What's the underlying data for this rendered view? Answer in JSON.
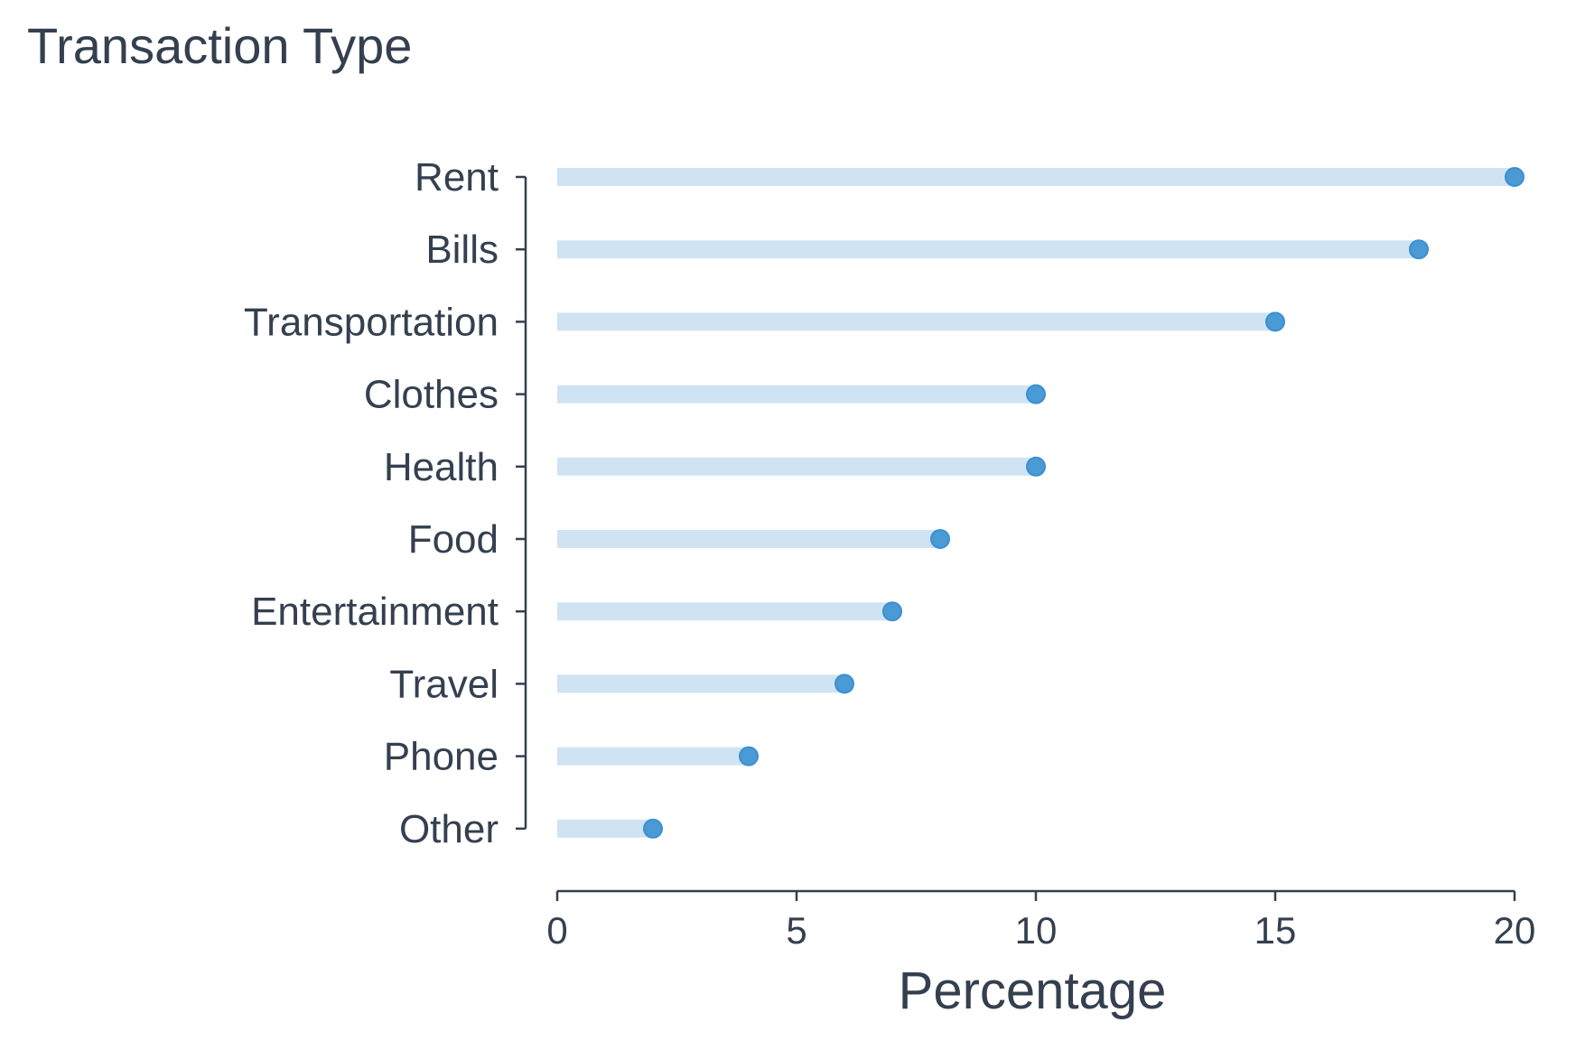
{
  "chart_data": {
    "type": "lollipop",
    "title": "Transaction Type",
    "xlabel": "Percentage",
    "ylabel": "",
    "categories": [
      "Rent",
      "Bills",
      "Transportation",
      "Clothes",
      "Health",
      "Food",
      "Entertainment",
      "Travel",
      "Phone",
      "Other"
    ],
    "values": [
      20,
      18,
      15,
      10,
      10,
      8,
      7,
      6,
      4,
      2
    ],
    "xlim": [
      0,
      20
    ],
    "xticks": [
      0,
      5,
      10,
      15,
      20
    ],
    "grid": false,
    "stem_color": "#cfe3f3",
    "marker_color": "#4a9ad6"
  }
}
